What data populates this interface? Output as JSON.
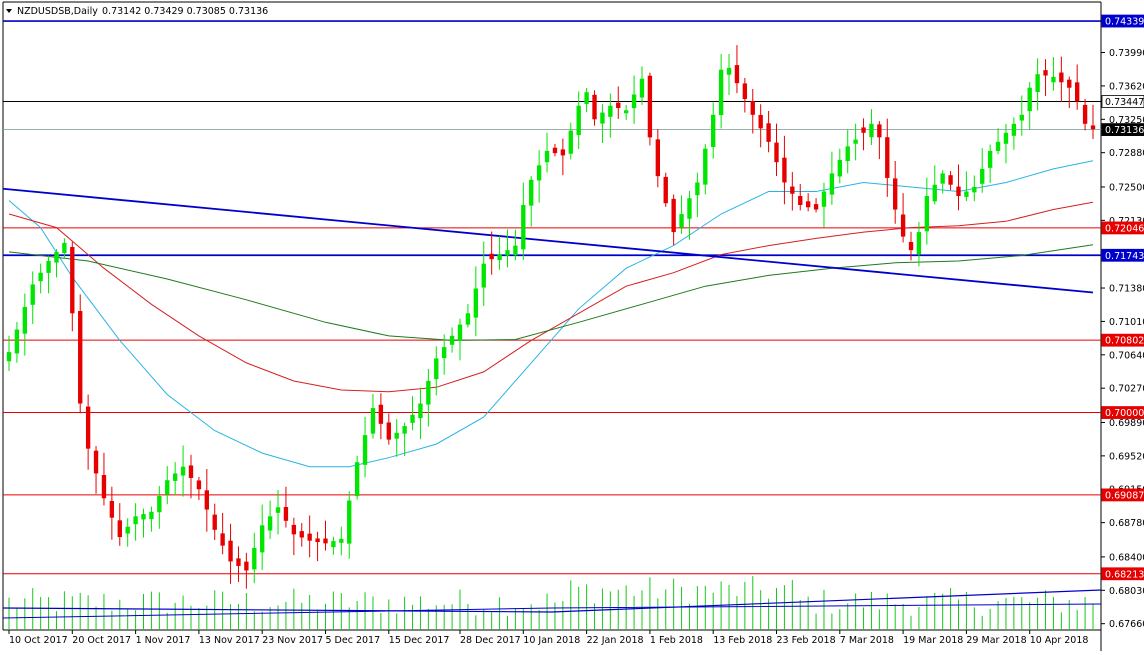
{
  "header": {
    "symbol": "NZDUSDSB,Daily",
    "ohlc": "0.73142 0.73429 0.73085 0.73136"
  },
  "colors": {
    "background": "#ffffff",
    "bull": "#00e600",
    "bear": "#e60000",
    "ma_fast": "#2ab4e6",
    "ma_mid": "#d42020",
    "ma_slow": "#1e7a1e",
    "trendline": "#0000cc",
    "volume": "#19c819"
  },
  "chart_data": {
    "type": "candlestick",
    "title": "NZDUSDSB,Daily",
    "ylim": [
      0.6759,
      0.7455
    ],
    "y_ticks": [
      "0.74339",
      "0.73990",
      "0.73620",
      "0.73250",
      "0.72880",
      "0.72500",
      "0.72130",
      "0.71750",
      "0.71380",
      "0.71010",
      "0.70640",
      "0.70270",
      "0.69890",
      "0.69520",
      "0.69150",
      "0.68780",
      "0.68400",
      "0.68030",
      "0.67660"
    ],
    "x_labels": [
      "10 Oct 2017",
      "20 Oct 2017",
      "1 Nov 2017",
      "13 Nov 2017",
      "23 Nov 2017",
      "5 Dec 2017",
      "15 Dec 2017",
      "28 Dec 2017",
      "10 Jan 2018",
      "22 Jan 2018",
      "1 Feb 2018",
      "13 Feb 2018",
      "23 Feb 2018",
      "7 Mar 2018",
      "19 Mar 2018",
      "29 Mar 2018",
      "10 Apr 2018"
    ],
    "x_label_bar_index": [
      0,
      8,
      16,
      24,
      32,
      40,
      48,
      57,
      65,
      73,
      81,
      89,
      97,
      105,
      113,
      121,
      129
    ],
    "bar_count": 138,
    "anchors": [
      [
        0,
        0.7067
      ],
      [
        3,
        0.7142
      ],
      [
        5,
        0.7168
      ],
      [
        7,
        0.7188
      ],
      [
        8,
        0.711
      ],
      [
        9,
        0.701
      ],
      [
        10,
        0.696
      ],
      [
        12,
        0.6905
      ],
      [
        14,
        0.6862
      ],
      [
        16,
        0.6885
      ],
      [
        18,
        0.689
      ],
      [
        20,
        0.6925
      ],
      [
        22,
        0.694
      ],
      [
        24,
        0.6915
      ],
      [
        26,
        0.687
      ],
      [
        28,
        0.6835
      ],
      [
        30,
        0.6825
      ],
      [
        32,
        0.6875
      ],
      [
        34,
        0.6895
      ],
      [
        36,
        0.6865
      ],
      [
        38,
        0.6858
      ],
      [
        40,
        0.6855
      ],
      [
        42,
        0.686
      ],
      [
        44,
        0.6945
      ],
      [
        46,
        0.7005
      ],
      [
        48,
        0.697
      ],
      [
        50,
        0.6985
      ],
      [
        52,
        0.701
      ],
      [
        54,
        0.706
      ],
      [
        56,
        0.7085
      ],
      [
        58,
        0.711
      ],
      [
        60,
        0.7165
      ],
      [
        62,
        0.7175
      ],
      [
        64,
        0.7185
      ],
      [
        65,
        0.723
      ],
      [
        66,
        0.7258
      ],
      [
        68,
        0.729
      ],
      [
        70,
        0.7285
      ],
      [
        72,
        0.734
      ],
      [
        73,
        0.7355
      ],
      [
        74,
        0.7325
      ],
      [
        76,
        0.734
      ],
      [
        78,
        0.7335
      ],
      [
        80,
        0.737
      ],
      [
        81,
        0.7305
      ],
      [
        82,
        0.7262
      ],
      [
        83,
        0.7232
      ],
      [
        84,
        0.72
      ],
      [
        85,
        0.722
      ],
      [
        87,
        0.7255
      ],
      [
        89,
        0.733
      ],
      [
        90,
        0.738
      ],
      [
        91,
        0.7382
      ],
      [
        92,
        0.7365
      ],
      [
        94,
        0.733
      ],
      [
        96,
        0.73
      ],
      [
        98,
        0.7255
      ],
      [
        100,
        0.723
      ],
      [
        102,
        0.7225
      ],
      [
        104,
        0.7265
      ],
      [
        106,
        0.7295
      ],
      [
        108,
        0.731
      ],
      [
        109,
        0.732
      ],
      [
        110,
        0.7305
      ],
      [
        111,
        0.726
      ],
      [
        112,
        0.7225
      ],
      [
        113,
        0.7195
      ],
      [
        114,
        0.718
      ],
      [
        115,
        0.72
      ],
      [
        116,
        0.724
      ],
      [
        118,
        0.7265
      ],
      [
        120,
        0.724
      ],
      [
        122,
        0.725
      ],
      [
        124,
        0.729
      ],
      [
        126,
        0.731
      ],
      [
        128,
        0.733
      ],
      [
        129,
        0.736
      ],
      [
        130,
        0.7375
      ],
      [
        132,
        0.7372
      ],
      [
        134,
        0.736
      ],
      [
        135,
        0.7345
      ],
      [
        136,
        0.732
      ],
      [
        137,
        0.7314
      ]
    ],
    "horizontal_levels": [
      {
        "value": 0.74339,
        "label": "0.74339",
        "color": "#0000cc",
        "bg": "#0000cc",
        "fg": "#ffffff",
        "width": 1.6
      },
      {
        "value": 0.73447,
        "label": "0.73447",
        "color": "#000000",
        "bg": "#ffffff",
        "fg": "#000000",
        "width": 1
      },
      {
        "value": 0.73136,
        "label": "0.73136",
        "color": "#8aa4a4",
        "bg": "#000000",
        "fg": "#ffffff",
        "width": 0.8
      },
      {
        "value": 0.72046,
        "label": "0.72046",
        "color": "#e60000",
        "bg": "#e60000",
        "fg": "#ffffff",
        "width": 1
      },
      {
        "value": 0.71743,
        "label": "0.71743",
        "color": "#0000cc",
        "bg": "#0000cc",
        "fg": "#ffffff",
        "width": 1.8
      },
      {
        "value": 0.70802,
        "label": "0.70802",
        "color": "#e60000",
        "bg": "#e60000",
        "fg": "#ffffff",
        "width": 1
      },
      {
        "value": 0.7,
        "label": "0.70000",
        "color": "#e60000",
        "bg": "#e60000",
        "fg": "#ffffff",
        "width": 1
      },
      {
        "value": 0.69087,
        "label": "0.69087",
        "color": "#e60000",
        "bg": "#e60000",
        "fg": "#ffffff",
        "width": 1
      },
      {
        "value": 0.68213,
        "label": "0.68213",
        "color": "#e60000",
        "bg": "#e60000",
        "fg": "#ffffff",
        "width": 1
      }
    ],
    "trendline": {
      "x0": 0,
      "y0": 0.7248,
      "x1": 137,
      "y1": 0.7133
    },
    "moving_averages": [
      {
        "color": "#2ab4e6",
        "points": [
          [
            0,
            0.7235
          ],
          [
            4,
            0.7205
          ],
          [
            8,
            0.715
          ],
          [
            14,
            0.708
          ],
          [
            20,
            0.702
          ],
          [
            26,
            0.698
          ],
          [
            32,
            0.6955
          ],
          [
            38,
            0.694
          ],
          [
            43,
            0.694
          ],
          [
            48,
            0.695
          ],
          [
            54,
            0.6965
          ],
          [
            60,
            0.6995
          ],
          [
            66,
            0.7055
          ],
          [
            72,
            0.7115
          ],
          [
            78,
            0.716
          ],
          [
            84,
            0.7185
          ],
          [
            90,
            0.722
          ],
          [
            96,
            0.7245
          ],
          [
            102,
            0.7245
          ],
          [
            108,
            0.7255
          ],
          [
            114,
            0.725
          ],
          [
            120,
            0.7245
          ],
          [
            126,
            0.7255
          ],
          [
            132,
            0.727
          ],
          [
            137,
            0.7279
          ]
        ]
      },
      {
        "color": "#d42020",
        "points": [
          [
            0,
            0.722
          ],
          [
            6,
            0.7205
          ],
          [
            12,
            0.716
          ],
          [
            18,
            0.712
          ],
          [
            24,
            0.7085
          ],
          [
            30,
            0.7055
          ],
          [
            36,
            0.7035
          ],
          [
            42,
            0.7025
          ],
          [
            48,
            0.7023
          ],
          [
            54,
            0.7028
          ],
          [
            60,
            0.7045
          ],
          [
            66,
            0.708
          ],
          [
            72,
            0.711
          ],
          [
            78,
            0.714
          ],
          [
            84,
            0.7155
          ],
          [
            90,
            0.7175
          ],
          [
            96,
            0.7185
          ],
          [
            102,
            0.7193
          ],
          [
            108,
            0.72
          ],
          [
            114,
            0.7205
          ],
          [
            120,
            0.7207
          ],
          [
            126,
            0.7212
          ],
          [
            132,
            0.7225
          ],
          [
            137,
            0.7233
          ]
        ]
      },
      {
        "color": "#1e7a1e",
        "points": [
          [
            0,
            0.7178
          ],
          [
            10,
            0.7168
          ],
          [
            20,
            0.7148
          ],
          [
            30,
            0.7125
          ],
          [
            40,
            0.71
          ],
          [
            48,
            0.7085
          ],
          [
            56,
            0.708
          ],
          [
            64,
            0.7081
          ],
          [
            72,
            0.71
          ],
          [
            80,
            0.712
          ],
          [
            88,
            0.714
          ],
          [
            96,
            0.7152
          ],
          [
            104,
            0.716
          ],
          [
            112,
            0.7166
          ],
          [
            120,
            0.7168
          ],
          [
            128,
            0.7174
          ],
          [
            137,
            0.7186
          ]
        ]
      }
    ],
    "volume": {
      "count": 138
    }
  }
}
